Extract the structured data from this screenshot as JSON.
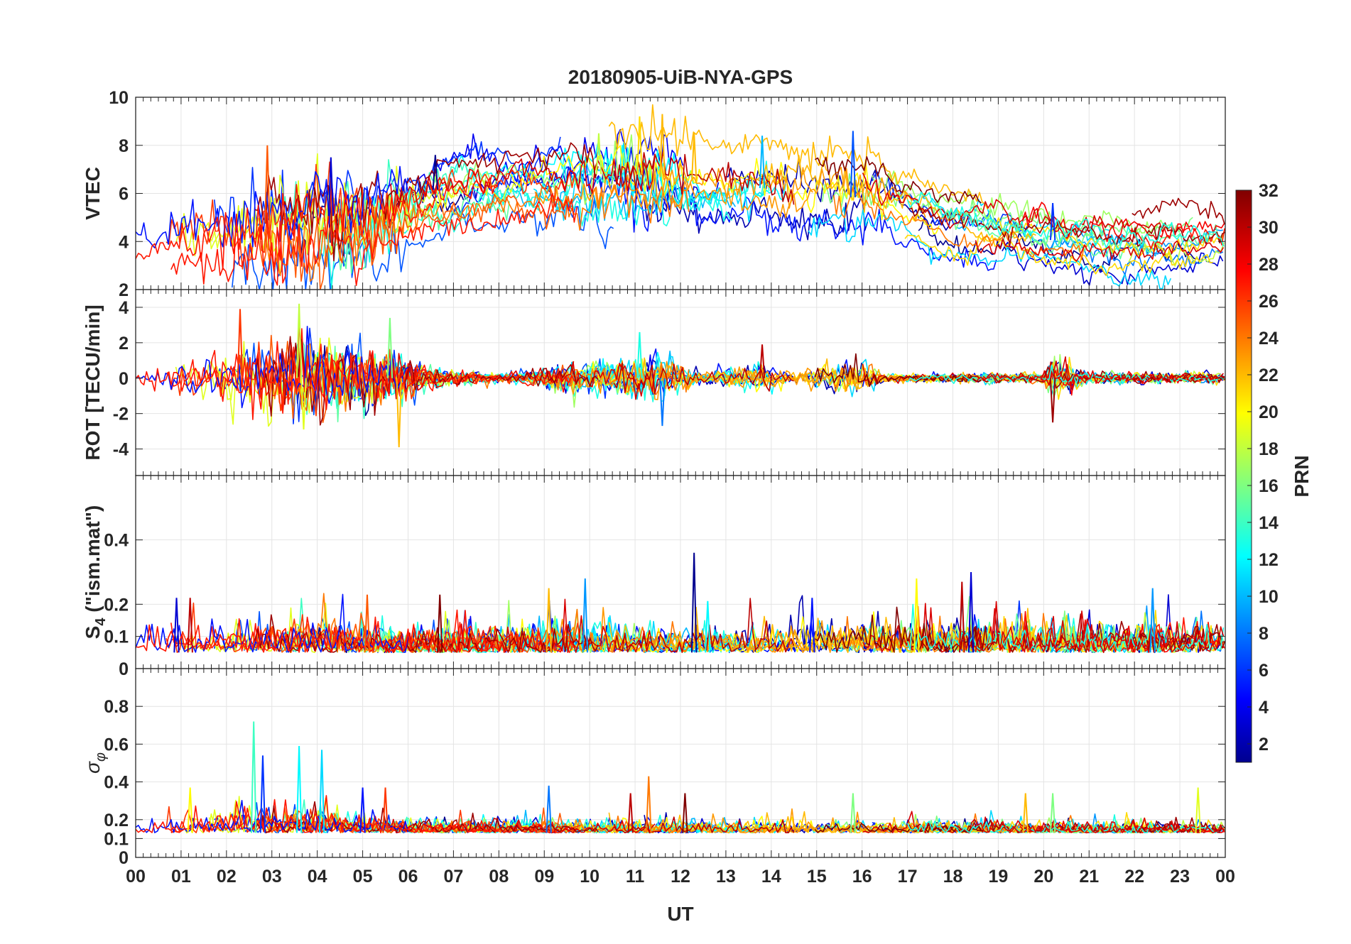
{
  "chart_data": {
    "type": "line",
    "title": "20180905-UiB-NYA-GPS",
    "xlabel": "UT",
    "x_ticks": [
      "00",
      "01",
      "02",
      "03",
      "04",
      "05",
      "06",
      "07",
      "08",
      "09",
      "10",
      "11",
      "12",
      "13",
      "14",
      "15",
      "16",
      "17",
      "18",
      "19",
      "20",
      "21",
      "22",
      "23",
      "00"
    ],
    "xlim_hours": [
      0,
      24
    ],
    "grid": true,
    "colorbar": {
      "label": "PRN",
      "range": [
        1,
        32
      ],
      "ticks": [
        "2",
        "4",
        "6",
        "8",
        "10",
        "12",
        "14",
        "16",
        "18",
        "20",
        "22",
        "24",
        "26",
        "28",
        "30",
        "32"
      ],
      "colormap": "jet",
      "stops": [
        "#00008f",
        "#0000ff",
        "#00ffff",
        "#ffff00",
        "#ff0000",
        "#800000"
      ]
    },
    "panels": [
      {
        "id": "vtec",
        "ylabel": "VTEC",
        "ylim": [
          2,
          10
        ],
        "yticks": [
          "2",
          "4",
          "6",
          "8",
          "10"
        ],
        "series_type": "level",
        "trend": [
          [
            0,
            4.2
          ],
          [
            1,
            4.5
          ],
          [
            2,
            4.6
          ],
          [
            3,
            4.8
          ],
          [
            4,
            5.0
          ],
          [
            5,
            5.2
          ],
          [
            6,
            5.8
          ],
          [
            7,
            6.4
          ],
          [
            8,
            6.5
          ],
          [
            9,
            6.5
          ],
          [
            10,
            6.8
          ],
          [
            11,
            6.8
          ],
          [
            12,
            6.6
          ],
          [
            13,
            6.3
          ],
          [
            14,
            6.2
          ],
          [
            15,
            6.0
          ],
          [
            16,
            5.8
          ],
          [
            17,
            5.2
          ],
          [
            18,
            4.6
          ],
          [
            19,
            4.4
          ],
          [
            20,
            4.1
          ],
          [
            21,
            3.9
          ],
          [
            22,
            3.9
          ],
          [
            23,
            4.0
          ],
          [
            24,
            4.0
          ]
        ],
        "spread": 1.3,
        "noise": [
          [
            0,
            0.2
          ],
          [
            2,
            0.6
          ],
          [
            4,
            0.8
          ],
          [
            5.5,
            0.6
          ],
          [
            6.5,
            0.2
          ],
          [
            9,
            0.2
          ],
          [
            10,
            0.4
          ],
          [
            11.5,
            0.5
          ],
          [
            12.5,
            0.2
          ],
          [
            14,
            0.3
          ],
          [
            16,
            0.4
          ],
          [
            17,
            0.15
          ],
          [
            24,
            0.15
          ]
        ],
        "peaks": [
          [
            2.9,
            8.0
          ],
          [
            4.3,
            7.5
          ],
          [
            6.6,
            7.6
          ],
          [
            10.2,
            8.5
          ],
          [
            11.1,
            9.2
          ],
          [
            11.6,
            9.3
          ],
          [
            12.3,
            8.5
          ],
          [
            13.8,
            8.4
          ],
          [
            15.8,
            8.6
          ],
          [
            20.2,
            5.6
          ]
        ]
      },
      {
        "id": "rot",
        "ylabel": "ROT [TECU/min]",
        "ylim": [
          -5.5,
          5
        ],
        "yticks": [
          "-4",
          "-2",
          "0",
          "2",
          "4"
        ],
        "series_type": "zero",
        "noise": [
          [
            0,
            0.2
          ],
          [
            2,
            1.0
          ],
          [
            3.5,
            1.6
          ],
          [
            5.5,
            1.1
          ],
          [
            6.5,
            0.4
          ],
          [
            8,
            0.15
          ],
          [
            10,
            0.6
          ],
          [
            11.5,
            0.9
          ],
          [
            12.5,
            0.2
          ],
          [
            13.8,
            0.6
          ],
          [
            14.5,
            0.2
          ],
          [
            15.8,
            0.8
          ],
          [
            16.5,
            0.15
          ],
          [
            20,
            0.2
          ],
          [
            20.2,
            0.8
          ],
          [
            21,
            0.2
          ],
          [
            24,
            0.2
          ]
        ],
        "peaks": [
          [
            2.3,
            3.9
          ],
          [
            3.6,
            4.2
          ],
          [
            3.7,
            -2.9
          ],
          [
            5.6,
            3.4
          ],
          [
            5.8,
            -3.9
          ],
          [
            11.1,
            2.6
          ],
          [
            11.6,
            -2.7
          ],
          [
            13.8,
            1.9
          ],
          [
            20.2,
            -2.5
          ]
        ]
      },
      {
        "id": "s4",
        "ylabel": "S4 (\"ism.mat\")",
        "ylabel_main": "S",
        "ylabel_sub": "4",
        "ylabel_rest": " (\"ism.mat\")",
        "ylim": [
          0,
          0.6
        ],
        "yticks": [
          "0",
          "0.1",
          "0.2",
          "0.4"
        ],
        "series_type": "floor",
        "base": 0.05,
        "noise": [
          [
            0,
            0.04
          ],
          [
            2,
            0.035
          ],
          [
            4,
            0.05
          ],
          [
            6,
            0.03
          ],
          [
            9,
            0.04
          ],
          [
            12,
            0.03
          ],
          [
            15,
            0.04
          ],
          [
            18,
            0.04
          ],
          [
            24,
            0.04
          ]
        ],
        "peaks": [
          [
            0.9,
            0.22
          ],
          [
            1.2,
            0.22
          ],
          [
            5.1,
            0.23
          ],
          [
            6.7,
            0.23
          ],
          [
            9.1,
            0.25
          ],
          [
            9.9,
            0.28
          ],
          [
            12.3,
            0.36
          ],
          [
            12.6,
            0.21
          ],
          [
            14.9,
            0.22
          ],
          [
            17.2,
            0.28
          ],
          [
            18.2,
            0.27
          ],
          [
            18.4,
            0.3
          ],
          [
            22.4,
            0.25
          ]
        ]
      },
      {
        "id": "sigma-phi",
        "ylabel": "σφ",
        "ylabel_main": "σ",
        "ylabel_sub": "φ",
        "ylim": [
          0,
          1
        ],
        "yticks": [
          "0",
          "0.1",
          "0.2",
          "0.4",
          "0.6",
          "0.8"
        ],
        "series_type": "floor",
        "base": 0.13,
        "noise": [
          [
            0,
            0.025
          ],
          [
            2.5,
            0.06
          ],
          [
            4,
            0.06
          ],
          [
            5,
            0.04
          ],
          [
            6,
            0.03
          ],
          [
            24,
            0.025
          ]
        ],
        "peaks": [
          [
            1.2,
            0.37
          ],
          [
            2.6,
            0.72
          ],
          [
            2.8,
            0.54
          ],
          [
            3.6,
            0.59
          ],
          [
            4.1,
            0.57
          ],
          [
            5.0,
            0.37
          ],
          [
            5.5,
            0.37
          ],
          [
            9.1,
            0.38
          ],
          [
            10.9,
            0.34
          ],
          [
            11.3,
            0.43
          ],
          [
            12.1,
            0.34
          ],
          [
            15.8,
            0.34
          ],
          [
            19.6,
            0.34
          ],
          [
            20.2,
            0.34
          ],
          [
            23.4,
            0.37
          ]
        ]
      }
    ]
  }
}
